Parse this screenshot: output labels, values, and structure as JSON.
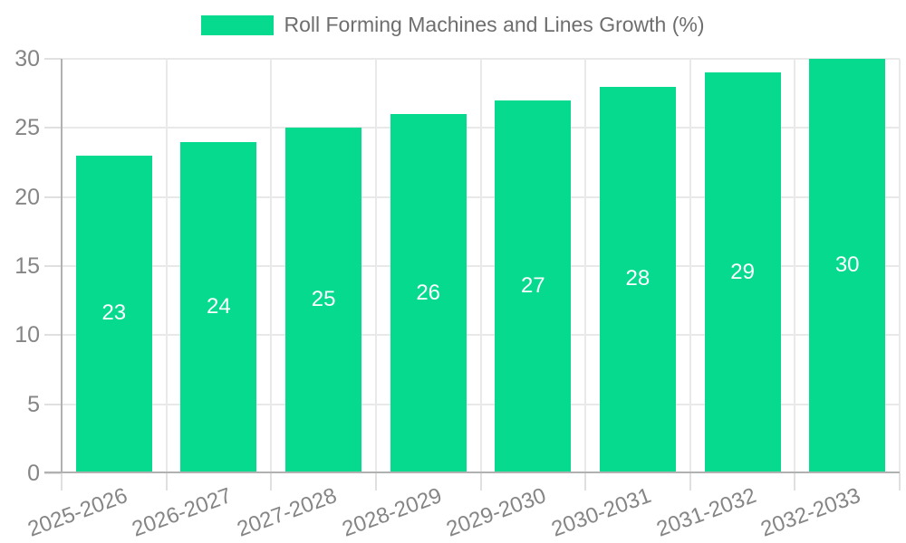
{
  "chart_data": {
    "type": "bar",
    "title": "",
    "legend": {
      "label": "Roll Forming Machines and Lines Growth (%)",
      "position": "top"
    },
    "categories": [
      "2025-2026",
      "2026-2027",
      "2027-2028",
      "2028-2029",
      "2029-2030",
      "2030-2031",
      "2031-2032",
      "2032-2033"
    ],
    "series": [
      {
        "name": "Roll Forming Machines and Lines Growth (%)",
        "values": [
          23,
          24,
          25,
          26,
          27,
          28,
          29,
          30
        ]
      }
    ],
    "bar_value_labels": [
      "23",
      "24",
      "25",
      "26",
      "27",
      "28",
      "29",
      "30"
    ],
    "xlabel": "",
    "ylabel": "",
    "ylim": [
      0,
      30
    ],
    "yticks": [
      0,
      5,
      10,
      15,
      20,
      25,
      30
    ],
    "grid": true,
    "x_tick_rotation_deg": -20,
    "colors": {
      "bar": "#05da8f",
      "bar_label": "#ffffff",
      "grid": "#e9e9e9",
      "tick": "#e0e0e0",
      "axis": "#b1b1b1",
      "tick_label": "#858585",
      "legend_text": "#6e6e6e",
      "background": "#ffffff"
    }
  }
}
